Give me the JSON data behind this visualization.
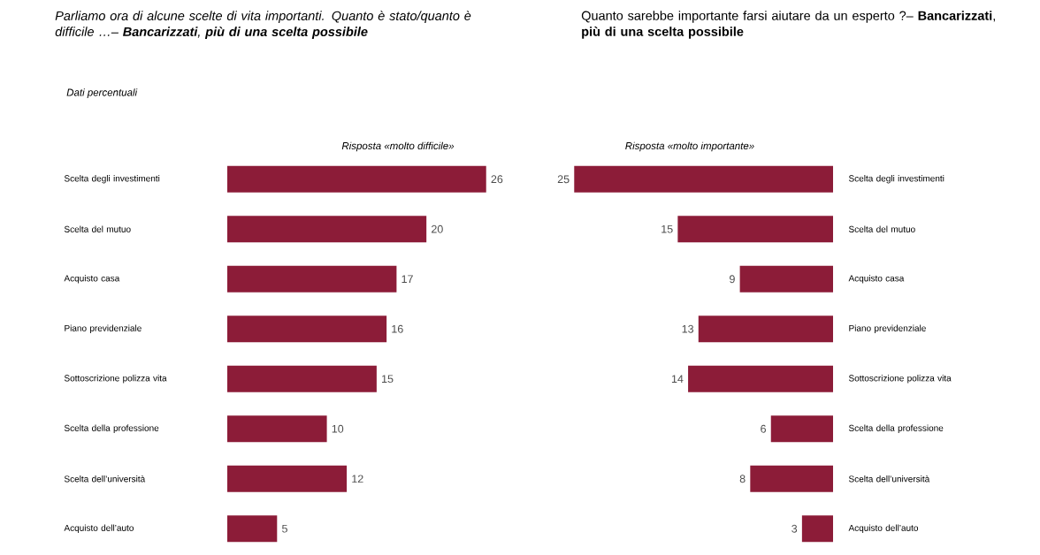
{
  "chart_data": [
    {
      "type": "bar",
      "orientation": "horizontal",
      "title": "Parliamo ora di alcune scelte di vita importanti. Quanto è stato/quanto è difficile …– **Bancarizzati**, **più di una scelta possibile**",
      "subtitle": "Dati percentuali",
      "xlabel": "Risposta «molto difficile»",
      "categories": [
        "Scelta degli investimenti",
        "Scelta del mutuo",
        "Acquisto casa",
        "Piano previdenziale",
        "Sottoscrizione polizza vita",
        "Scelta della professione",
        "Scelta dell’università",
        "Acquisto dell’auto"
      ],
      "values": [
        26,
        20,
        17,
        16,
        15,
        10,
        12,
        5
      ],
      "color": "#8c1c38",
      "data_labels": true,
      "tick_labels": "y"
    },
    {
      "type": "bar",
      "orientation": "horizontal",
      "title": "Quanto sarebbe importante farsi aiutare da un esperto ?– **Bancarizzati**, **più di una scelta possibile**",
      "xlabel": "Risposta «molto importante»",
      "categories": [
        "Scelta degli investimenti",
        "Scelta del mutuo",
        "Acquisto casa",
        "Piano previdenziale",
        "Sottoscrizione polizza vita",
        "Scelta della professione",
        "Scelta dell’università",
        "Acquisto dell’auto"
      ],
      "values": [
        25,
        15,
        9,
        13,
        14,
        6,
        8,
        3
      ],
      "color": "#8c1c38",
      "data_labels": true,
      "tick_labels": "y"
    }
  ]
}
